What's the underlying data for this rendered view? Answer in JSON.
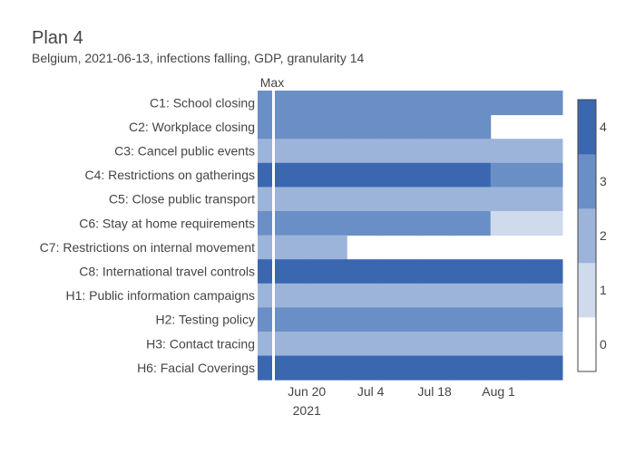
{
  "title": "Plan 4",
  "subtitle": "Belgium, 2021-06-13, infections falling, GDP, granularity 14",
  "chart_data": {
    "type": "heatmap",
    "max_column_label": "Max",
    "rows": [
      "C1: School closing",
      "C2: Workplace closing",
      "C3: Cancel public events",
      "C4: Restrictions on gatherings",
      "C5: Close public transport",
      "C6: Stay at home requirements",
      "C7: Restrictions on internal movement",
      "C8: International travel controls",
      "H1: Public information campaigns",
      "H2: Testing policy",
      "H3: Contact tracing",
      "H6: Facial Coverings"
    ],
    "max_values": [
      3,
      3,
      2,
      4,
      2,
      3,
      2,
      4,
      2,
      3,
      2,
      4
    ],
    "period_boundaries": [
      "2021-06-13",
      "2021-06-27",
      "2021-07-11",
      "2021-07-25",
      "2021-08-08"
    ],
    "period_values": [
      [
        3,
        3,
        3,
        3,
        3,
        3,
        3,
        3
      ],
      [
        3,
        3,
        3,
        3,
        3,
        3,
        null,
        null
      ],
      [
        2,
        2,
        2,
        2,
        2,
        2,
        2,
        2
      ],
      [
        4,
        4,
        4,
        4,
        4,
        4,
        3,
        3
      ],
      [
        2,
        2,
        2,
        2,
        2,
        2,
        2,
        2
      ],
      [
        3,
        3,
        3,
        3,
        3,
        3,
        1,
        1
      ],
      [
        2,
        2,
        null,
        null,
        null,
        null,
        null,
        null
      ],
      [
        4,
        4,
        4,
        4,
        4,
        4,
        4,
        4
      ],
      [
        2,
        2,
        2,
        2,
        2,
        2,
        2,
        2
      ],
      [
        3,
        3,
        3,
        3,
        3,
        3,
        3,
        3
      ],
      [
        2,
        2,
        2,
        2,
        2,
        2,
        2,
        2
      ],
      [
        4,
        4,
        4,
        4,
        4,
        4,
        4,
        4
      ]
    ],
    "x_range": [
      "2021-06-13",
      "2021-08-15"
    ],
    "x_ticks": [
      {
        "date": "2021-06-20",
        "label": "Jun 20",
        "sublabel": "2021"
      },
      {
        "date": "2021-07-04",
        "label": "Jul 4",
        "sublabel": ""
      },
      {
        "date": "2021-07-18",
        "label": "Jul 18",
        "sublabel": ""
      },
      {
        "date": "2021-08-01",
        "label": "Aug 1",
        "sublabel": ""
      }
    ],
    "colorscale": [
      "#ffffff",
      "#cfdbec",
      "#9cb4da",
      "#6a8fc6",
      "#3a67b0"
    ],
    "colorbar": {
      "min": 0,
      "max": 4,
      "ticks": [
        0,
        1,
        2,
        3,
        4
      ]
    }
  }
}
